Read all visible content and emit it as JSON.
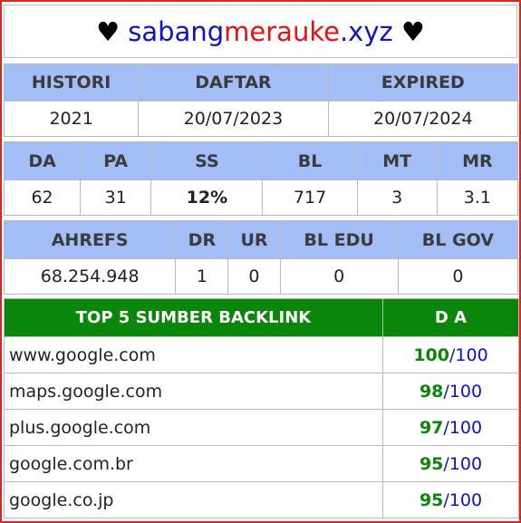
{
  "header": {
    "heart_left": "♥",
    "domain_part1": "sabang",
    "domain_part2": "merauke",
    "domain_part3": ".xyz",
    "heart_right": "♥"
  },
  "registration": {
    "headers": [
      "HISTORI",
      "DAFTAR",
      "EXPIRED"
    ],
    "values": [
      "2021",
      "20/07/2023",
      "20/07/2024"
    ]
  },
  "metrics": {
    "headers": [
      "DA",
      "PA",
      "SS",
      "BL",
      "MT",
      "MR"
    ],
    "values": [
      "62",
      "31",
      "12%",
      "717",
      "3",
      "3.1"
    ]
  },
  "ahrefs": {
    "headers": [
      "AHREFS",
      "DR",
      "UR",
      "BL EDU",
      "BL GOV"
    ],
    "values": [
      "68.254.948",
      "1",
      "0",
      "0",
      "0"
    ]
  },
  "backlinks": {
    "header_source": "TOP 5 SUMBER BACKLINK",
    "header_da": "D A",
    "separator": "/",
    "max": "100",
    "rows": [
      {
        "site": "www.google.com",
        "score": "100"
      },
      {
        "site": "maps.google.com",
        "score": "98"
      },
      {
        "site": "plus.google.com",
        "score": "97"
      },
      {
        "site": "google.com.br",
        "score": "95"
      },
      {
        "site": "google.co.jp",
        "score": "95"
      }
    ]
  },
  "colors": {
    "frame_border": "#e02424",
    "header_blue_bg": "#a3bdf7",
    "header_green_bg": "#0a860a",
    "domain_blue": "#1010d0",
    "domain_red": "#e81010",
    "ss_cyan": "#18c7d0",
    "score_green": "#0a860a"
  }
}
